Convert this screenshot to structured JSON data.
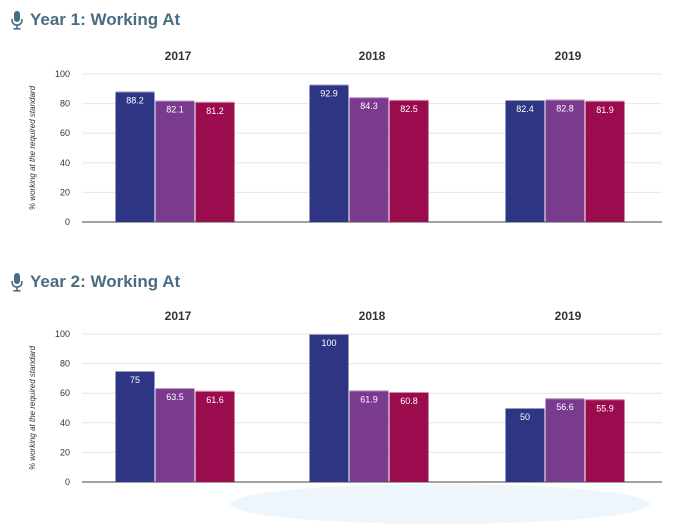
{
  "colors": {
    "title": "#4a6c82",
    "series": [
      "#2e3583",
      "#7a3a8e",
      "#9b0c4e"
    ],
    "grid": "#e6e6e6",
    "axis": "#444444"
  },
  "icon": "microphone-icon",
  "chart_data": [
    {
      "type": "bar",
      "title": "Year 1: Working At",
      "ylabel": "% working at the required standard",
      "ylim": [
        0,
        100
      ],
      "yticks": [
        0,
        20,
        40,
        60,
        80,
        100
      ],
      "grid": true,
      "categories": [
        "2017",
        "2018",
        "2019"
      ],
      "series": [
        {
          "values": [
            88.2,
            92.9,
            82.4
          ]
        },
        {
          "values": [
            82.1,
            84.3,
            82.8
          ]
        },
        {
          "values": [
            81.2,
            82.5,
            81.9
          ]
        }
      ]
    },
    {
      "type": "bar",
      "title": "Year 2: Working At",
      "ylabel": "% working at the required standard",
      "ylim": [
        0,
        100
      ],
      "yticks": [
        0,
        20,
        40,
        60,
        80,
        100
      ],
      "grid": true,
      "categories": [
        "2017",
        "2018",
        "2019"
      ],
      "series": [
        {
          "values": [
            75,
            100,
            50
          ]
        },
        {
          "values": [
            63.5,
            61.9,
            56.6
          ]
        },
        {
          "values": [
            61.6,
            60.8,
            55.9
          ]
        }
      ]
    }
  ]
}
